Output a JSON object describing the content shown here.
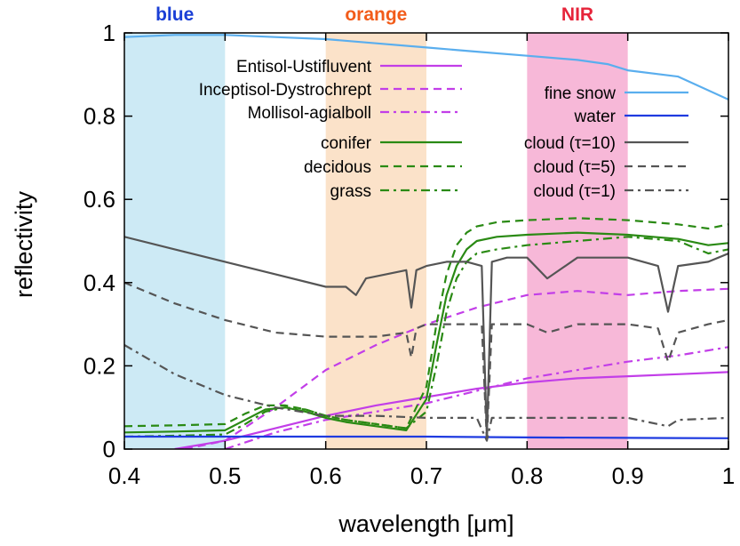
{
  "chart_data": {
    "type": "line",
    "title": "",
    "xlabel": "wavelength [μm]",
    "ylabel": "reflectivity",
    "xlim": [
      0.4,
      1.0
    ],
    "ylim": [
      0,
      1.0
    ],
    "x_ticks": [
      0.4,
      0.5,
      0.6,
      0.7,
      0.8,
      0.9,
      1.0
    ],
    "x_tick_labels": [
      "0.4",
      "0.5",
      "0.6",
      "0.7",
      "0.8",
      "0.9",
      "1"
    ],
    "y_ticks": [
      0,
      0.2,
      0.4,
      0.6,
      0.8,
      1.0
    ],
    "y_tick_labels": [
      "0",
      "0.2",
      "0.4",
      "0.6",
      "0.8",
      "1"
    ],
    "grid": false,
    "bands": [
      {
        "label": "blue",
        "from": 0.4,
        "to": 0.5,
        "color": "#cdeaf5",
        "label_color": "#1a3fd6"
      },
      {
        "label": "orange",
        "from": 0.6,
        "to": 0.7,
        "color": "#fbe2c9",
        "label_color": "#f25c1a"
      },
      {
        "label": "NIR",
        "from": 0.8,
        "to": 0.9,
        "color": "#f7b8d8",
        "label_color": "#e6243a"
      }
    ],
    "series": [
      {
        "name": "Entisol-Ustifluvent",
        "color": "#c23ee8",
        "dash": "solid",
        "legend_column": "left",
        "x": [
          0.45,
          0.5,
          0.55,
          0.6,
          0.65,
          0.7,
          0.75,
          0.8,
          0.85,
          0.9,
          0.95,
          1.0
        ],
        "y": [
          0.0,
          0.02,
          0.05,
          0.08,
          0.105,
          0.125,
          0.145,
          0.16,
          0.17,
          0.175,
          0.18,
          0.185
        ]
      },
      {
        "name": "Inceptisol-Dystrochrept",
        "color": "#c23ee8",
        "dash": "dashed",
        "legend_column": "left",
        "x": [
          0.46,
          0.5,
          0.55,
          0.6,
          0.65,
          0.7,
          0.75,
          0.8,
          0.85,
          0.9,
          0.95,
          1.0
        ],
        "y": [
          0.0,
          0.02,
          0.1,
          0.19,
          0.25,
          0.3,
          0.34,
          0.37,
          0.38,
          0.37,
          0.38,
          0.385
        ]
      },
      {
        "name": "Mollisol-agialboll",
        "color": "#c23ee8",
        "dash": "dashdot",
        "legend_column": "left",
        "x": [
          0.5,
          0.55,
          0.6,
          0.65,
          0.7,
          0.75,
          0.8,
          0.85,
          0.9,
          0.95,
          1.0
        ],
        "y": [
          0.0,
          0.04,
          0.07,
          0.09,
          0.11,
          0.14,
          0.17,
          0.19,
          0.21,
          0.225,
          0.245
        ]
      },
      {
        "name": "conifer",
        "color": "#2a8a14",
        "dash": "solid",
        "legend_column": "left",
        "x": [
          0.4,
          0.45,
          0.5,
          0.52,
          0.54,
          0.56,
          0.58,
          0.6,
          0.62,
          0.65,
          0.68,
          0.7,
          0.71,
          0.72,
          0.73,
          0.74,
          0.75,
          0.77,
          0.8,
          0.85,
          0.9,
          0.95,
          0.98,
          1.0
        ],
        "y": [
          0.04,
          0.042,
          0.045,
          0.07,
          0.095,
          0.1,
          0.09,
          0.075,
          0.065,
          0.055,
          0.045,
          0.12,
          0.25,
          0.37,
          0.44,
          0.48,
          0.5,
          0.51,
          0.515,
          0.52,
          0.515,
          0.505,
          0.49,
          0.495
        ]
      },
      {
        "name": "decidous",
        "color": "#2a8a14",
        "dash": "dashed",
        "legend_column": "left",
        "x": [
          0.4,
          0.45,
          0.5,
          0.52,
          0.54,
          0.56,
          0.58,
          0.6,
          0.62,
          0.65,
          0.68,
          0.7,
          0.71,
          0.72,
          0.73,
          0.74,
          0.75,
          0.77,
          0.8,
          0.85,
          0.9,
          0.95,
          0.98,
          1.0
        ],
        "y": [
          0.055,
          0.057,
          0.06,
          0.085,
          0.105,
          0.105,
          0.095,
          0.08,
          0.07,
          0.06,
          0.05,
          0.15,
          0.3,
          0.42,
          0.49,
          0.52,
          0.535,
          0.545,
          0.55,
          0.555,
          0.55,
          0.54,
          0.53,
          0.54
        ]
      },
      {
        "name": "grass",
        "color": "#2a8a14",
        "dash": "dashdot",
        "legend_column": "left",
        "x": [
          0.4,
          0.45,
          0.5,
          0.52,
          0.54,
          0.56,
          0.58,
          0.6,
          0.62,
          0.65,
          0.68,
          0.7,
          0.71,
          0.72,
          0.73,
          0.74,
          0.75,
          0.77,
          0.8,
          0.85,
          0.9,
          0.95,
          0.98,
          1.0
        ],
        "y": [
          0.03,
          0.032,
          0.035,
          0.06,
          0.09,
          0.1,
          0.095,
          0.08,
          0.07,
          0.06,
          0.05,
          0.09,
          0.2,
          0.33,
          0.41,
          0.45,
          0.47,
          0.48,
          0.49,
          0.5,
          0.51,
          0.5,
          0.47,
          0.48
        ]
      },
      {
        "name": "fine snow",
        "color": "#5aaeee",
        "dash": "solid",
        "legend_column": "right",
        "x": [
          0.4,
          0.45,
          0.5,
          0.55,
          0.6,
          0.65,
          0.7,
          0.75,
          0.8,
          0.85,
          0.88,
          0.9,
          0.95,
          1.0
        ],
        "y": [
          0.99,
          0.995,
          0.995,
          0.99,
          0.985,
          0.975,
          0.965,
          0.955,
          0.945,
          0.935,
          0.925,
          0.91,
          0.895,
          0.84
        ]
      },
      {
        "name": "water",
        "color": "#1f3be0",
        "dash": "solid",
        "legend_column": "right",
        "x": [
          0.4,
          0.5,
          0.6,
          0.7,
          0.8,
          0.9,
          1.0
        ],
        "y": [
          0.03,
          0.03,
          0.03,
          0.03,
          0.028,
          0.027,
          0.026
        ]
      },
      {
        "name": "cloud (τ=10)",
        "color": "#555555",
        "dash": "solid",
        "legend_column": "right",
        "x": [
          0.4,
          0.45,
          0.5,
          0.55,
          0.6,
          0.62,
          0.63,
          0.64,
          0.66,
          0.68,
          0.685,
          0.69,
          0.7,
          0.72,
          0.74,
          0.755,
          0.76,
          0.765,
          0.78,
          0.8,
          0.82,
          0.85,
          0.88,
          0.9,
          0.93,
          0.94,
          0.95,
          0.98,
          1.0
        ],
        "y": [
          0.51,
          0.48,
          0.45,
          0.42,
          0.39,
          0.39,
          0.37,
          0.41,
          0.42,
          0.43,
          0.34,
          0.43,
          0.44,
          0.45,
          0.45,
          0.44,
          0.03,
          0.45,
          0.46,
          0.46,
          0.41,
          0.46,
          0.46,
          0.46,
          0.44,
          0.33,
          0.44,
          0.45,
          0.47
        ]
      },
      {
        "name": "cloud (τ=5)",
        "color": "#555555",
        "dash": "dashed",
        "legend_column": "right",
        "x": [
          0.4,
          0.45,
          0.5,
          0.55,
          0.6,
          0.65,
          0.68,
          0.685,
          0.69,
          0.7,
          0.72,
          0.74,
          0.755,
          0.76,
          0.765,
          0.78,
          0.8,
          0.82,
          0.85,
          0.9,
          0.93,
          0.94,
          0.95,
          0.98,
          1.0
        ],
        "y": [
          0.4,
          0.35,
          0.31,
          0.28,
          0.27,
          0.27,
          0.28,
          0.22,
          0.29,
          0.3,
          0.3,
          0.3,
          0.3,
          0.02,
          0.3,
          0.3,
          0.3,
          0.28,
          0.3,
          0.3,
          0.29,
          0.21,
          0.28,
          0.3,
          0.31
        ]
      },
      {
        "name": "cloud (τ=1)",
        "color": "#555555",
        "dash": "dashdot",
        "legend_column": "right",
        "x": [
          0.4,
          0.45,
          0.5,
          0.55,
          0.6,
          0.65,
          0.7,
          0.75,
          0.76,
          0.765,
          0.8,
          0.85,
          0.9,
          0.94,
          0.95,
          1.0
        ],
        "y": [
          0.25,
          0.18,
          0.13,
          0.1,
          0.08,
          0.08,
          0.075,
          0.075,
          0.02,
          0.075,
          0.075,
          0.075,
          0.075,
          0.055,
          0.07,
          0.075
        ]
      }
    ]
  }
}
